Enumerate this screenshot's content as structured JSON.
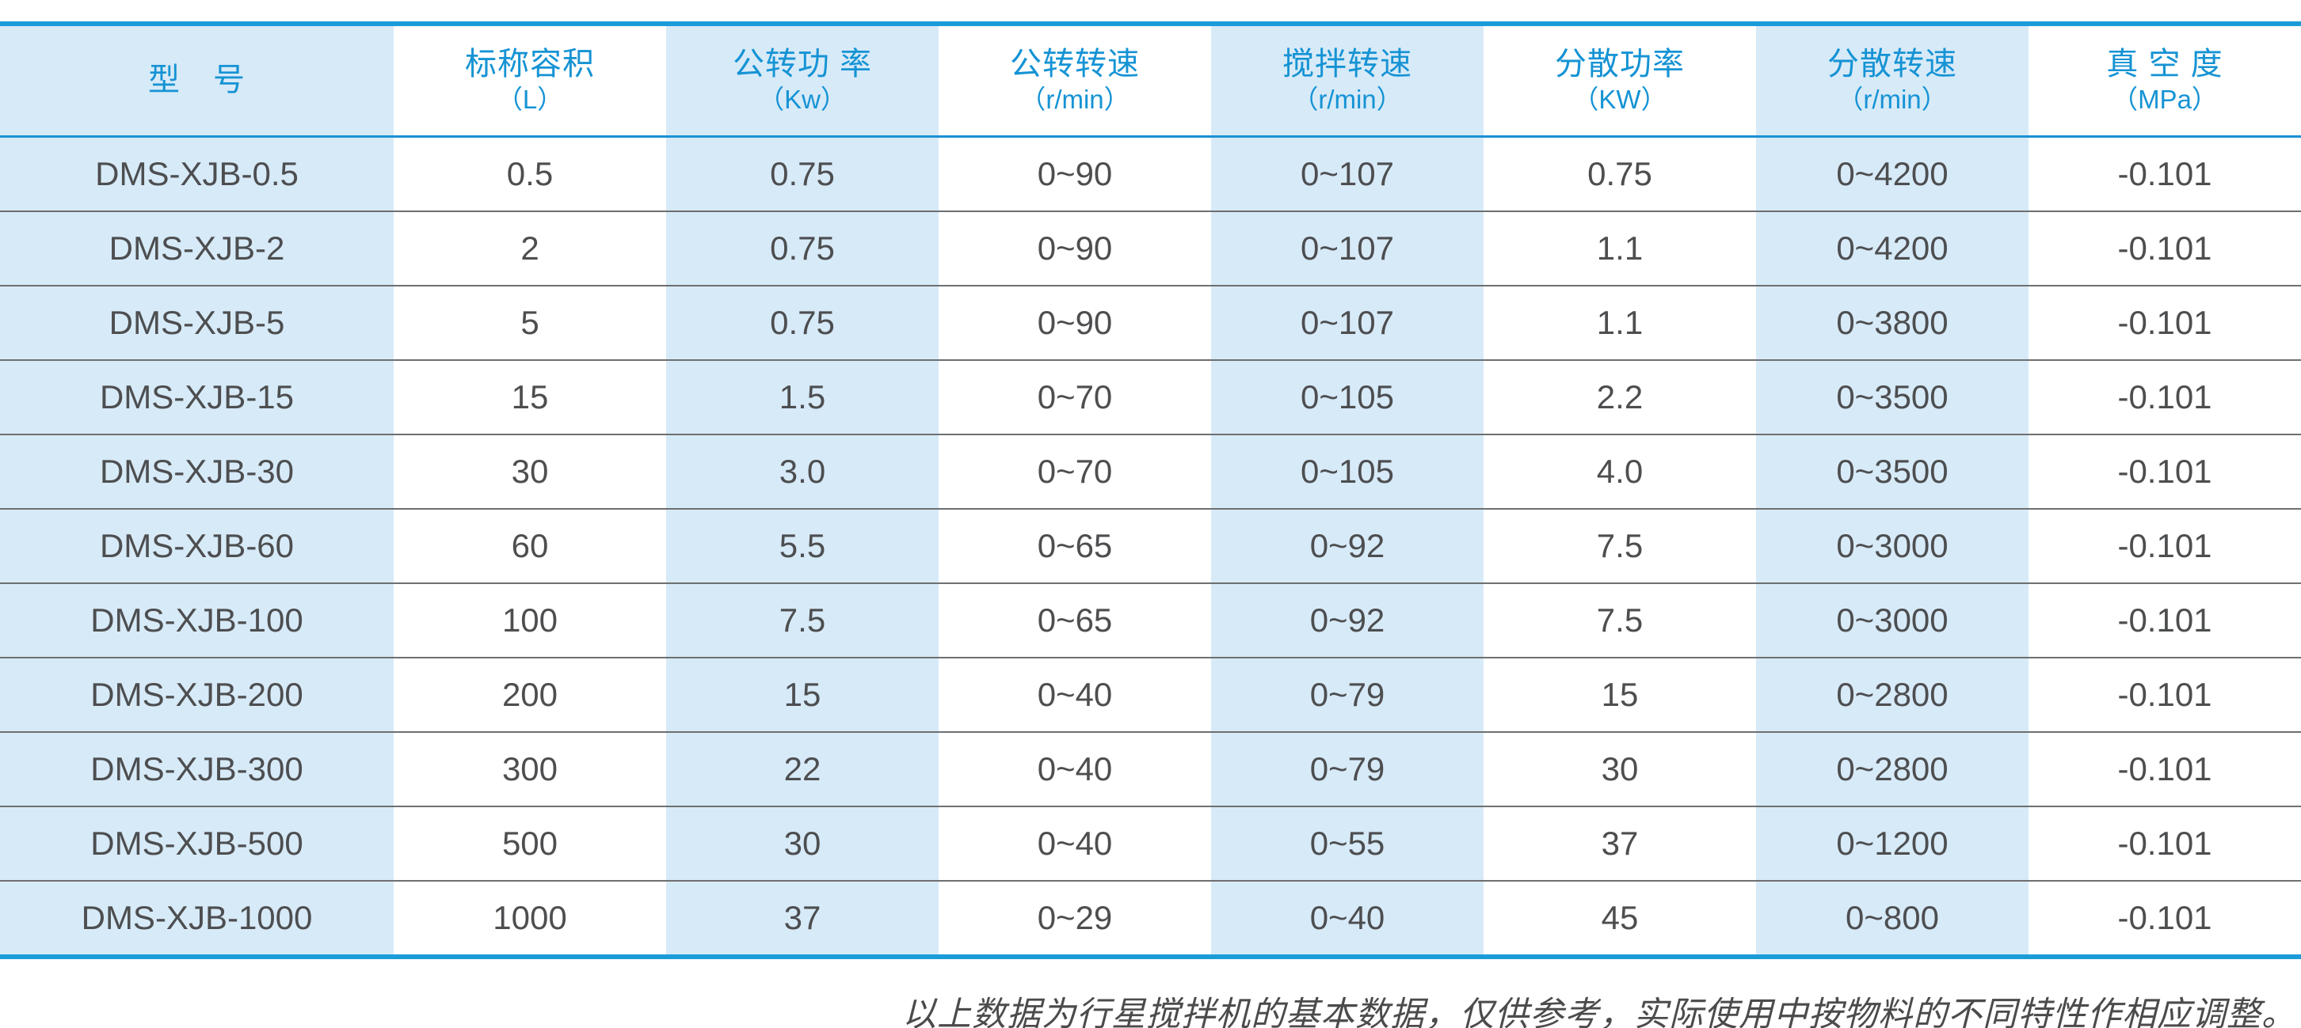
{
  "table": {
    "columns": [
      {
        "title": "型　号",
        "unit": ""
      },
      {
        "title": "标称容积",
        "unit": "（L）"
      },
      {
        "title": "公转功 率",
        "unit": "（Kw）"
      },
      {
        "title": "公转转速",
        "unit": "（r/min）"
      },
      {
        "title": "搅拌转速",
        "unit": "（r/min）"
      },
      {
        "title": "分散功率",
        "unit": "（KW）"
      },
      {
        "title": "分散转速",
        "unit": "（r/min）"
      },
      {
        "title": "真 空 度",
        "unit": "（MPa）"
      }
    ],
    "rows": [
      [
        "DMS-XJB-0.5",
        "0.5",
        "0.75",
        "0~90",
        "0~107",
        "0.75",
        "0~4200",
        "-0.101"
      ],
      [
        "DMS-XJB-2",
        "2",
        "0.75",
        "0~90",
        "0~107",
        "1.1",
        "0~4200",
        "-0.101"
      ],
      [
        "DMS-XJB-5",
        "5",
        "0.75",
        "0~90",
        "0~107",
        "1.1",
        "0~3800",
        "-0.101"
      ],
      [
        "DMS-XJB-15",
        "15",
        "1.5",
        "0~70",
        "0~105",
        "2.2",
        "0~3500",
        "-0.101"
      ],
      [
        "DMS-XJB-30",
        "30",
        "3.0",
        "0~70",
        "0~105",
        "4.0",
        "0~3500",
        "-0.101"
      ],
      [
        "DMS-XJB-60",
        "60",
        "5.5",
        "0~65",
        "0~92",
        "7.5",
        "0~3000",
        "-0.101"
      ],
      [
        "DMS-XJB-100",
        "100",
        "7.5",
        "0~65",
        "0~92",
        "7.5",
        "0~3000",
        "-0.101"
      ],
      [
        "DMS-XJB-200",
        "200",
        "15",
        "0~40",
        "0~79",
        "15",
        "0~2800",
        "-0.101"
      ],
      [
        "DMS-XJB-300",
        "300",
        "22",
        "0~40",
        "0~79",
        "30",
        "0~2800",
        "-0.101"
      ],
      [
        "DMS-XJB-500",
        "500",
        "30",
        "0~40",
        "0~55",
        "37",
        "0~1200",
        "-0.101"
      ],
      [
        "DMS-XJB-1000",
        "1000",
        "37",
        "0~29",
        "0~40",
        "45",
        "0~800",
        "-0.101"
      ]
    ]
  },
  "footer": {
    "note": "以上数据为行星搅拌机的基本数据，仅供参考，实际使用中按物料的不同特性作相应调整。"
  },
  "colors": {
    "accent_blue_border": "#1b9cd9",
    "header_text_blue": "#1593d4",
    "stripe_light_blue": "#d7eaf8",
    "body_text_gray": "#4d4e50",
    "row_divider_gray": "#6e6f70"
  }
}
